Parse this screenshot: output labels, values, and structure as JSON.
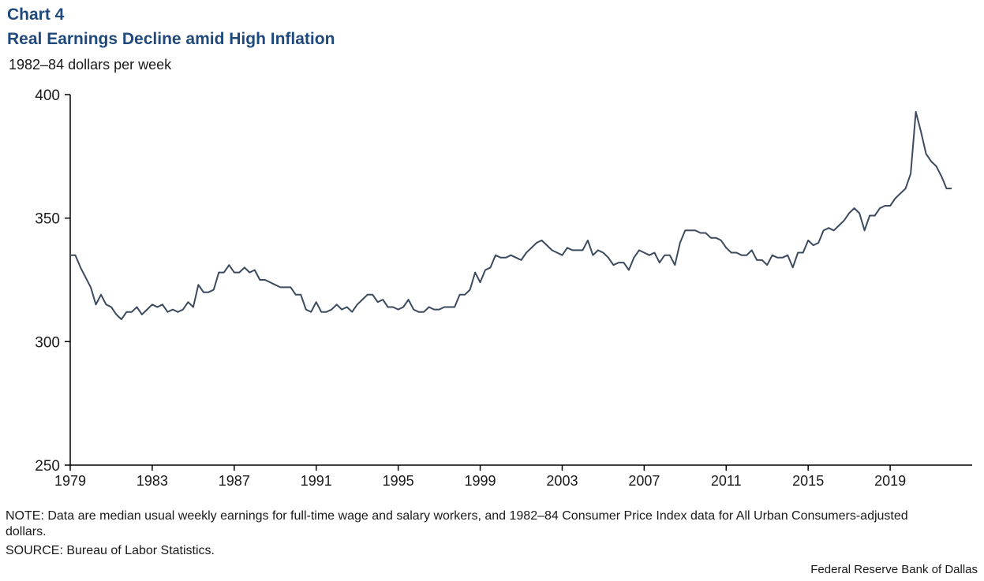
{
  "header": {
    "chart_number": "Chart 4",
    "title": "Real Earnings Decline amid High Inflation",
    "unit": "1982–84 dollars per week"
  },
  "footer": {
    "note": "NOTE: Data are median usual weekly earnings for full-time wage and salary workers, and 1982–84 Consumer Price Index data for All Urban Consumers-adjusted  dollars.",
    "source": "SOURCE: Bureau of Labor Statistics.",
    "credit": "Federal Reserve Bank of Dallas"
  },
  "colors": {
    "title": "#1f497d",
    "line": "#3b4a5e",
    "axis": "#000000"
  },
  "chart_data": {
    "type": "line",
    "title": "Real Earnings Decline amid High Inflation",
    "ylabel": "1982–84 dollars per week",
    "xlabel": "",
    "ylim": [
      250,
      400
    ],
    "xlim": [
      1979,
      2023
    ],
    "yticks": [
      250,
      300,
      350,
      400
    ],
    "xticks": [
      1979,
      1983,
      1987,
      1991,
      1995,
      1999,
      2003,
      2007,
      2011,
      2015,
      2019
    ],
    "grid": false,
    "legend": "none",
    "frequency": "quarterly",
    "series": [
      {
        "x_start": "1979 Q1",
        "values": [
          335,
          335,
          330,
          326,
          322,
          315,
          319,
          315,
          314,
          311,
          309,
          312,
          312,
          314,
          311,
          313,
          315,
          314,
          315,
          312,
          313,
          312,
          313,
          316,
          314,
          323,
          320,
          320,
          321,
          328,
          328,
          331,
          328,
          328,
          330,
          328,
          329,
          325,
          325,
          324,
          323,
          322,
          322,
          322,
          319,
          319,
          313,
          312,
          316,
          312,
          312,
          313,
          315,
          313,
          314,
          312,
          315,
          317,
          319,
          319,
          316,
          317,
          314,
          314,
          313,
          314,
          317,
          313,
          312,
          312,
          314,
          313,
          313,
          314,
          314,
          314,
          319,
          319,
          321,
          328,
          324,
          329,
          330,
          335,
          334,
          334,
          335,
          334,
          333,
          336,
          338,
          340,
          341,
          339,
          337,
          336,
          335,
          338,
          337,
          337,
          337,
          341,
          335,
          337,
          336,
          334,
          331,
          332,
          332,
          329,
          334,
          337,
          336,
          335,
          336,
          332,
          335,
          335,
          331,
          340,
          345,
          345,
          345,
          344,
          344,
          342,
          342,
          341,
          338,
          336,
          336,
          335,
          335,
          337,
          333,
          333,
          331,
          335,
          334,
          334,
          335,
          330,
          336,
          336,
          341,
          339,
          340,
          345,
          346,
          345,
          347,
          349,
          352,
          354,
          352,
          345,
          351,
          351,
          354,
          355,
          355,
          358,
          360,
          362,
          368,
          393,
          385,
          376,
          373,
          371,
          367,
          362,
          362
        ]
      }
    ]
  }
}
